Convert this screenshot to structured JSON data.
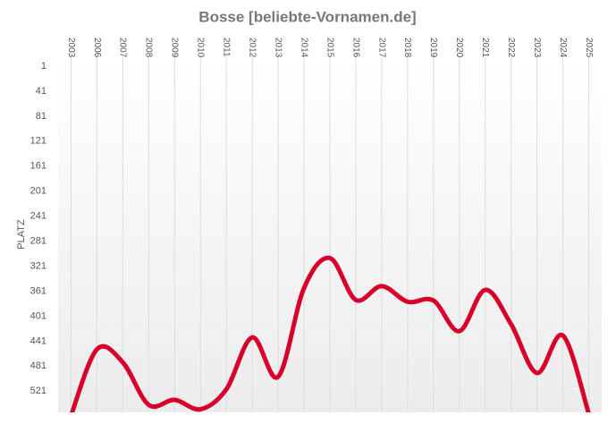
{
  "chart_data": {
    "type": "line",
    "title": "Bosse [beliebte-Vornamen.de]",
    "y_label": "PLATZ",
    "categories": [
      "2003",
      "2006",
      "2007",
      "2008",
      "2009",
      "2010",
      "2011",
      "2012",
      "2013",
      "2014",
      "2015",
      "2016",
      "2017",
      "2018",
      "2019",
      "2020",
      "2021",
      "2022",
      "2023",
      "2024",
      "2025"
    ],
    "series": [
      {
        "name": "Bosse",
        "color": "#d6002a",
        "values": [
          560,
          454,
          475,
          543,
          535,
          550,
          518,
          435,
          498,
          356,
          308,
          375,
          353,
          378,
          376,
          425,
          359,
          414,
          492,
          432,
          557
        ]
      }
    ],
    "ylim": [
      1,
      555
    ],
    "y_inverted": true,
    "yticks": [
      1,
      41,
      81,
      121,
      161,
      201,
      241,
      281,
      321,
      361,
      401,
      441,
      481,
      521
    ],
    "grid": true,
    "smooth": true
  }
}
